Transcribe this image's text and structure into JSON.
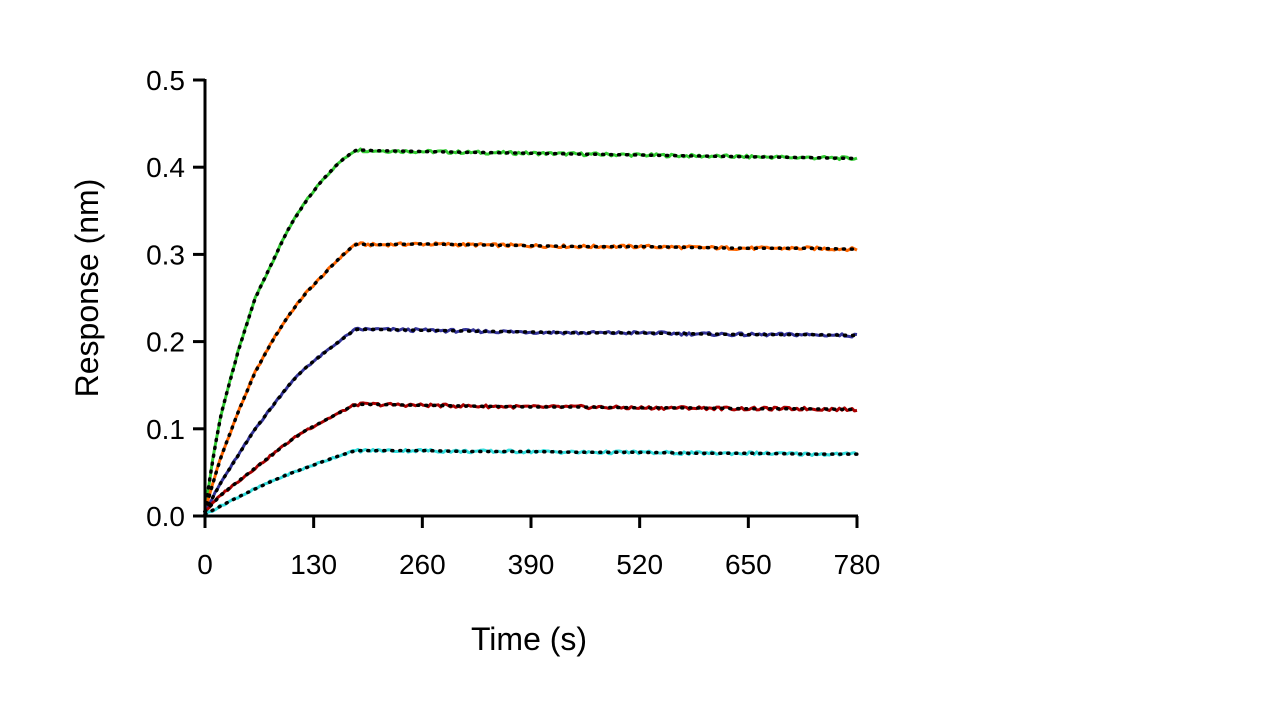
{
  "chart_data": {
    "type": "line",
    "title": "",
    "xlabel": "Time (s)",
    "ylabel": "Response (nm)",
    "xlim": [
      0,
      780
    ],
    "ylim": [
      0,
      0.5
    ],
    "x_ticks": [
      "0",
      "130",
      "260",
      "390",
      "520",
      "650",
      "780"
    ],
    "y_ticks": [
      "0.0",
      "0.1",
      "0.2",
      "0.3",
      "0.4",
      "0.5"
    ],
    "grid": false,
    "legend": "none",
    "fit_line_style": "black dotted",
    "series": [
      {
        "color": "#33cc33",
        "x": [
          0,
          10,
          20,
          40,
          60,
          80,
          100,
          120,
          140,
          160,
          180,
          200,
          260,
          320,
          390,
          450,
          520,
          580,
          650,
          720,
          780
        ],
        "y": [
          0.005,
          0.07,
          0.12,
          0.19,
          0.25,
          0.29,
          0.33,
          0.36,
          0.385,
          0.405,
          0.42,
          0.419,
          0.418,
          0.417,
          0.416,
          0.415,
          0.414,
          0.413,
          0.412,
          0.411,
          0.41
        ]
      },
      {
        "color": "#ff6600",
        "x": [
          0,
          10,
          20,
          40,
          60,
          80,
          100,
          120,
          140,
          160,
          180,
          200,
          260,
          320,
          390,
          450,
          520,
          580,
          650,
          720,
          780
        ],
        "y": [
          0.005,
          0.04,
          0.07,
          0.12,
          0.165,
          0.2,
          0.23,
          0.255,
          0.275,
          0.295,
          0.312,
          0.311,
          0.312,
          0.311,
          0.31,
          0.309,
          0.309,
          0.308,
          0.307,
          0.307,
          0.306
        ]
      },
      {
        "color": "#333399",
        "x": [
          0,
          20,
          40,
          60,
          80,
          100,
          120,
          140,
          160,
          180,
          200,
          260,
          320,
          390,
          450,
          520,
          580,
          650,
          720,
          780
        ],
        "y": [
          0.005,
          0.04,
          0.07,
          0.1,
          0.125,
          0.15,
          0.17,
          0.185,
          0.2,
          0.214,
          0.214,
          0.213,
          0.212,
          0.211,
          0.21,
          0.21,
          0.209,
          0.208,
          0.208,
          0.207
        ]
      },
      {
        "color": "#aa0000",
        "x": [
          0,
          20,
          40,
          60,
          80,
          100,
          120,
          140,
          160,
          180,
          200,
          260,
          320,
          390,
          450,
          520,
          580,
          650,
          720,
          780
        ],
        "y": [
          0.005,
          0.025,
          0.04,
          0.055,
          0.07,
          0.085,
          0.098,
          0.108,
          0.118,
          0.128,
          0.128,
          0.127,
          0.126,
          0.125,
          0.125,
          0.124,
          0.124,
          0.123,
          0.123,
          0.122
        ]
      },
      {
        "color": "#33dddd",
        "x": [
          0,
          20,
          40,
          60,
          80,
          100,
          120,
          140,
          160,
          180,
          200,
          260,
          320,
          390,
          450,
          520,
          580,
          650,
          720,
          780
        ],
        "y": [
          0.002,
          0.012,
          0.022,
          0.031,
          0.04,
          0.048,
          0.055,
          0.062,
          0.069,
          0.075,
          0.075,
          0.075,
          0.074,
          0.074,
          0.073,
          0.073,
          0.072,
          0.072,
          0.071,
          0.071
        ]
      }
    ]
  }
}
